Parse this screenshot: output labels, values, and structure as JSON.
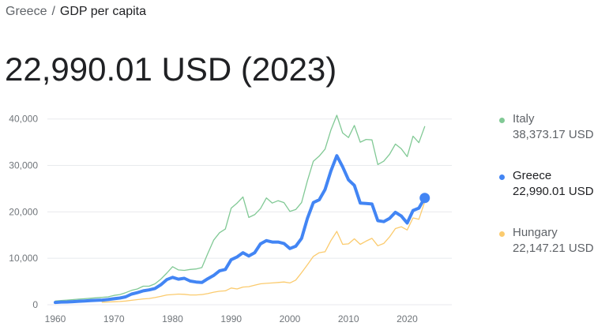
{
  "breadcrumb": {
    "area": "Greece",
    "separator": "/",
    "metric": "GDP per capita"
  },
  "headline": "22,990.01 USD (2023)",
  "colors": {
    "Italy": "#81c995",
    "Greece": "#4285f4",
    "Hungary": "#fbcb6e",
    "grid": "#e8eaed",
    "axis": "#70757a"
  },
  "legend": [
    {
      "name": "Italy",
      "value": "38,373.17 USD"
    },
    {
      "name": "Greece",
      "value": "22,990.01 USD"
    },
    {
      "name": "Hungary",
      "value": "22,147.21 USD"
    }
  ],
  "chart_data": {
    "type": "line",
    "x_ticks": [
      1960,
      1970,
      1980,
      1990,
      2000,
      2010,
      2020
    ],
    "y_ticks": [
      "0",
      "10,000",
      "20,000",
      "30,000",
      "40,000"
    ],
    "xlim": [
      1960,
      2026
    ],
    "ylim": [
      0,
      42500
    ],
    "highlight": {
      "series": "Greece",
      "x": 2023,
      "y": 22990.01
    },
    "series": [
      {
        "name": "Italy",
        "x": [
          1960,
          1961,
          1962,
          1963,
          1964,
          1965,
          1966,
          1967,
          1968,
          1969,
          1970,
          1971,
          1972,
          1973,
          1974,
          1975,
          1976,
          1977,
          1978,
          1979,
          1980,
          1981,
          1982,
          1983,
          1984,
          1985,
          1986,
          1987,
          1988,
          1989,
          1990,
          1991,
          1992,
          1993,
          1994,
          1995,
          1996,
          1997,
          1998,
          1999,
          2000,
          2001,
          2002,
          2003,
          2004,
          2005,
          2006,
          2007,
          2008,
          2009,
          2010,
          2011,
          2012,
          2013,
          2014,
          2015,
          2016,
          2017,
          2018,
          2019,
          2020,
          2021,
          2022,
          2023
        ],
        "values": [
          800,
          900,
          1000,
          1100,
          1200,
          1300,
          1400,
          1500,
          1600,
          1700,
          2000,
          2200,
          2600,
          3100,
          3400,
          4000,
          4000,
          4500,
          5500,
          6800,
          8200,
          7500,
          7400,
          7600,
          7700,
          8000,
          11000,
          13900,
          15500,
          16300,
          20800,
          21900,
          23200,
          18800,
          19400,
          20700,
          23000,
          21900,
          22400,
          22000,
          20100,
          20500,
          22000,
          26700,
          30900,
          32000,
          33500,
          37600,
          40800,
          37000,
          36000,
          38600,
          35000,
          35600,
          35500,
          30200,
          30900,
          32400,
          34600,
          33600,
          31900,
          36300,
          34900,
          38373
        ]
      },
      {
        "name": "Greece",
        "x": [
          1960,
          1961,
          1962,
          1963,
          1964,
          1965,
          1966,
          1967,
          1968,
          1969,
          1970,
          1971,
          1972,
          1973,
          1974,
          1975,
          1976,
          1977,
          1978,
          1979,
          1980,
          1981,
          1982,
          1983,
          1984,
          1985,
          1986,
          1987,
          1988,
          1989,
          1990,
          1991,
          1992,
          1993,
          1994,
          1995,
          1996,
          1997,
          1998,
          1999,
          2000,
          2001,
          2002,
          2003,
          2004,
          2005,
          2006,
          2007,
          2008,
          2009,
          2010,
          2011,
          2012,
          2013,
          2014,
          2015,
          2016,
          2017,
          2018,
          2019,
          2020,
          2021,
          2022,
          2023
        ],
        "values": [
          500,
          580,
          600,
          660,
          740,
          820,
          900,
          960,
          1010,
          1130,
          1300,
          1450,
          1700,
          2300,
          2600,
          3000,
          3200,
          3500,
          4300,
          5400,
          5900,
          5500,
          5700,
          5100,
          4900,
          4800,
          5600,
          6300,
          7300,
          7600,
          9700,
          10300,
          11200,
          10500,
          11200,
          13100,
          13800,
          13500,
          13500,
          13200,
          12100,
          12600,
          14300,
          18600,
          22000,
          22600,
          24800,
          28800,
          32100,
          29700,
          26900,
          25700,
          21900,
          21800,
          21700,
          18100,
          17900,
          18600,
          19900,
          19100,
          17600,
          20300,
          20800,
          22990
        ]
      },
      {
        "name": "Hungary",
        "x": [
          1968,
          1969,
          1970,
          1971,
          1972,
          1973,
          1974,
          1975,
          1976,
          1977,
          1978,
          1979,
          1980,
          1981,
          1982,
          1983,
          1984,
          1985,
          1986,
          1987,
          1988,
          1989,
          1990,
          1991,
          1992,
          1993,
          1994,
          1995,
          1996,
          1997,
          1998,
          1999,
          2000,
          2001,
          2002,
          2003,
          2004,
          2005,
          2006,
          2007,
          2008,
          2009,
          2010,
          2011,
          2012,
          2013,
          2014,
          2015,
          2016,
          2017,
          2018,
          2019,
          2020,
          2021,
          2022,
          2023
        ],
        "values": [
          550,
          600,
          650,
          700,
          800,
          950,
          1100,
          1250,
          1350,
          1550,
          1800,
          2100,
          2200,
          2300,
          2250,
          2100,
          2100,
          2200,
          2400,
          2700,
          2900,
          3000,
          3600,
          3400,
          3800,
          3900,
          4200,
          4500,
          4600,
          4700,
          4800,
          4900,
          4700,
          5300,
          6900,
          8600,
          10400,
          11200,
          11400,
          13800,
          15800,
          13000,
          13100,
          14200,
          13000,
          13700,
          14300,
          12700,
          13200,
          14600,
          16400,
          16800,
          16100,
          18700,
          18400,
          22147
        ]
      }
    ]
  }
}
